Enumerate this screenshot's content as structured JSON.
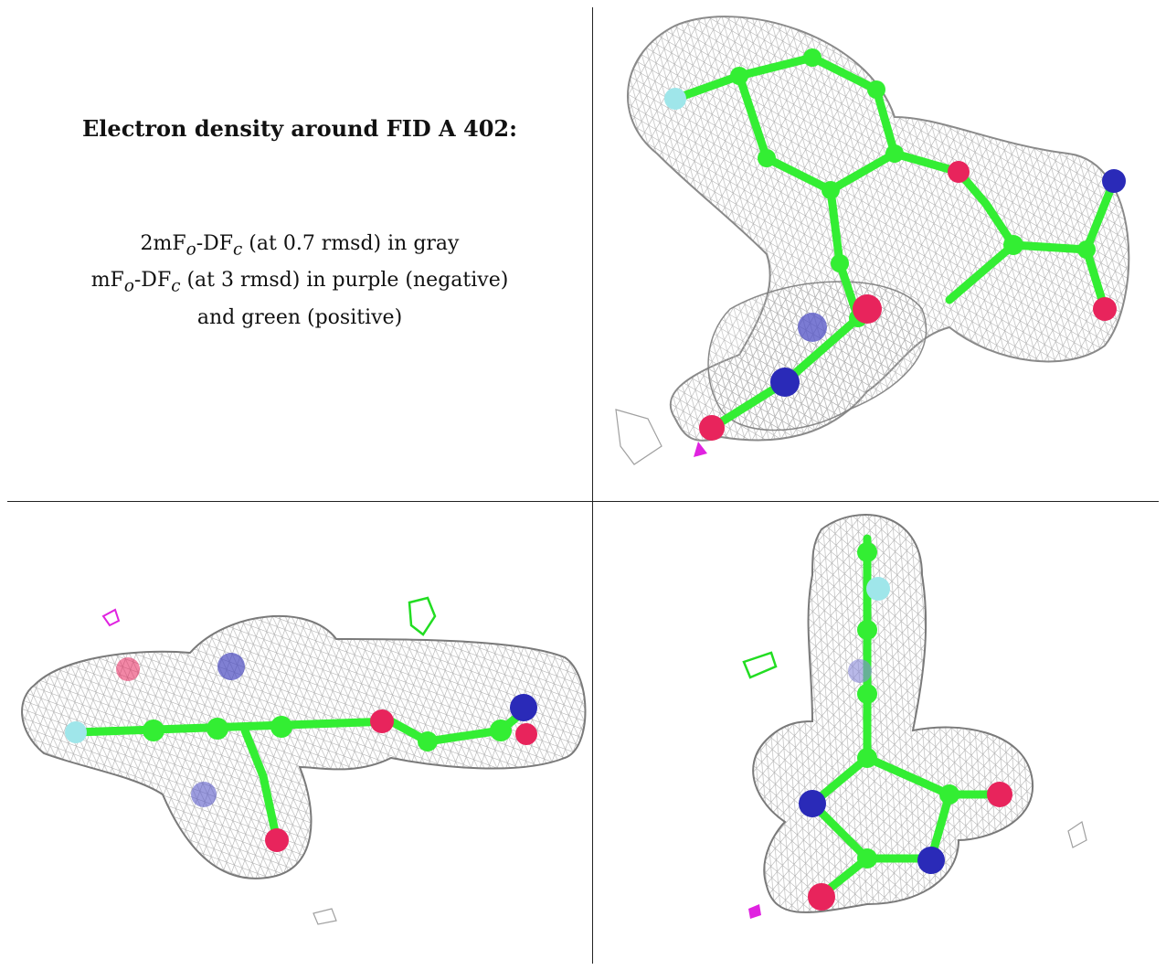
{
  "caption": {
    "title": "Electron density around FID A 402:",
    "line1": "2mFo-DFc (at 0.7 rmsd) in gray",
    "line2": "mFo-DFc (at 3 rmsd) in purple (negative)",
    "line3": "and green (positive)"
  },
  "legend_tokens": {
    "prefix_2m": "2mF",
    "sub_o": "o",
    "dash_D": "-DF",
    "sub_c": "c",
    "gray_suffix": " (at 0.7 rmsd) in gray",
    "prefix_m": "mF",
    "purple_suffix": " (at 3 rmsd) in purple (negative)",
    "green_line": "and green (positive)"
  },
  "colors": {
    "mesh_gray": "#9a9a9a",
    "carbon_green": "#33ee33",
    "oxygen_red": "#e8245c",
    "nitrogen_blue": "#2a2ab8",
    "fluorine_cyan": "#9fe6ea",
    "negative_purple": "#e022e0",
    "positive_green": "#22dd22"
  },
  "panels": [
    {
      "name": "view-top-right"
    },
    {
      "name": "view-bottom-left"
    },
    {
      "name": "view-bottom-right"
    }
  ]
}
